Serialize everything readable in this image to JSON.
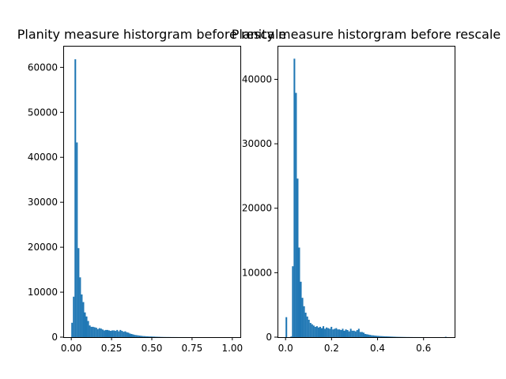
{
  "colors": {
    "bar": "#1f77b4",
    "axes": "#000000",
    "background": "#ffffff"
  },
  "chart_data": [
    {
      "type": "bar",
      "subtype": "histogram",
      "title": "Planity measure historgram before rescale",
      "xlabel": "",
      "ylabel": "",
      "xlim": [
        -0.05,
        1.05
      ],
      "ylim": [
        0,
        64800
      ],
      "grid": false,
      "xticks": [
        {
          "value": 0.0,
          "label": "0.00"
        },
        {
          "value": 0.25,
          "label": "0.25"
        },
        {
          "value": 0.5,
          "label": "0.50"
        },
        {
          "value": 0.75,
          "label": "0.75"
        },
        {
          "value": 1.0,
          "label": "1.00"
        }
      ],
      "yticks": [
        {
          "value": 0,
          "label": "0"
        },
        {
          "value": 10000,
          "label": "10000"
        },
        {
          "value": 20000,
          "label": "20000"
        },
        {
          "value": 30000,
          "label": "30000"
        },
        {
          "value": 40000,
          "label": "40000"
        },
        {
          "value": 50000,
          "label": "50000"
        },
        {
          "value": 60000,
          "label": "60000"
        }
      ],
      "bin_start": 0.0,
      "bin_width": 0.01,
      "values": [
        3200,
        9000,
        61800,
        43300,
        19800,
        13300,
        9500,
        7800,
        5500,
        4600,
        3600,
        2600,
        2300,
        2300,
        2200,
        2100,
        1800,
        2000,
        1900,
        1700,
        1500,
        1600,
        1600,
        1500,
        1400,
        1500,
        1500,
        1400,
        1600,
        1300,
        1600,
        1400,
        1200,
        1300,
        1100,
        1000,
        800,
        700,
        600,
        500,
        450,
        400,
        350,
        300,
        250,
        230,
        200,
        180,
        150,
        150,
        130,
        120,
        100,
        90,
        80,
        60,
        50,
        40,
        35,
        30,
        30,
        25,
        20,
        20,
        15,
        15,
        10,
        10,
        10,
        10,
        8,
        8,
        6,
        6,
        5,
        5,
        4,
        4,
        3,
        3,
        3,
        2,
        2,
        2,
        2,
        1,
        1,
        1,
        1,
        1,
        1,
        1,
        1,
        1,
        1,
        1,
        1,
        1,
        1,
        1
      ]
    },
    {
      "type": "bar",
      "subtype": "histogram",
      "title": "Planity measure historgram before rescale",
      "xlabel": "",
      "ylabel": "",
      "xlim": [
        -0.035,
        0.735
      ],
      "ylim": [
        0,
        45200
      ],
      "grid": false,
      "xticks": [
        {
          "value": 0.0,
          "label": "0.0"
        },
        {
          "value": 0.2,
          "label": "0.2"
        },
        {
          "value": 0.4,
          "label": "0.4"
        },
        {
          "value": 0.6,
          "label": "0.6"
        }
      ],
      "yticks": [
        {
          "value": 0,
          "label": "0"
        },
        {
          "value": 10000,
          "label": "10000"
        },
        {
          "value": 20000,
          "label": "20000"
        },
        {
          "value": 30000,
          "label": "30000"
        },
        {
          "value": 40000,
          "label": "40000"
        }
      ],
      "bin_start": 0.0,
      "bin_width": 0.007,
      "values": [
        3100,
        0,
        0,
        100,
        11000,
        43200,
        37900,
        24600,
        13900,
        8600,
        6100,
        4800,
        3800,
        3200,
        2700,
        2200,
        2000,
        1800,
        1600,
        1700,
        1500,
        1600,
        1400,
        1700,
        1300,
        1500,
        1400,
        1300,
        1600,
        1200,
        1300,
        1400,
        1200,
        1200,
        1100,
        1300,
        1000,
        1200,
        1100,
        900,
        1300,
        1000,
        1000,
        900,
        1100,
        1300,
        800,
        800,
        700,
        500,
        450,
        400,
        350,
        300,
        280,
        250,
        220,
        200,
        180,
        160,
        150,
        130,
        120,
        110,
        100,
        90,
        80,
        70,
        60,
        50,
        45,
        40,
        35,
        30,
        25,
        20,
        20,
        15,
        15,
        10,
        10,
        10,
        8,
        8,
        6,
        6,
        5,
        5,
        4,
        4,
        3,
        3,
        2,
        2,
        2,
        2,
        1,
        1,
        1,
        60
      ]
    }
  ]
}
